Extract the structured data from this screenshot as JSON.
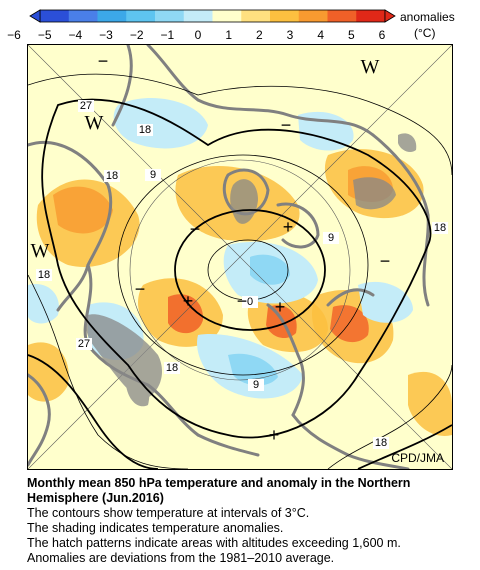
{
  "colorbar": {
    "label": "anomalies",
    "unit": "(°C)",
    "ticks": [
      "−6",
      "−5",
      "−4",
      "−3",
      "−2",
      "−1",
      "0",
      "1",
      "2",
      "3",
      "4",
      "5",
      "6"
    ],
    "colors": [
      "#2b4fd8",
      "#4a7fe8",
      "#3ca8e8",
      "#5ec4f0",
      "#8fd8f4",
      "#c4ecf8",
      "#ffffcc",
      "#ffe080",
      "#fcc040",
      "#f89a30",
      "#f06028",
      "#e02818"
    ]
  },
  "map": {
    "credit": "CPD/JMA",
    "contour_labels": [
      "27",
      "18",
      "18",
      "9",
      "18",
      "9",
      "18",
      "0",
      "27",
      "18",
      "9",
      "18"
    ],
    "markers": [
      "W",
      "W",
      "W",
      "+",
      "+",
      "+",
      "+",
      "−",
      "−",
      "−",
      "−",
      "−",
      "−"
    ]
  },
  "caption": {
    "title_line1": "Monthly mean 850 hPa temperature and anomaly in the Northern",
    "title_line2": "Hemisphere (Jun.2016)",
    "line1": "The contours show temperature at intervals of 3°C.",
    "line2": "The shading indicates temperature anomalies.",
    "line3": "The hatch patterns indicate areas with altitudes exceeding 1,600 m.",
    "line4": "Anomalies are deviations from the 1981–2010 average."
  }
}
